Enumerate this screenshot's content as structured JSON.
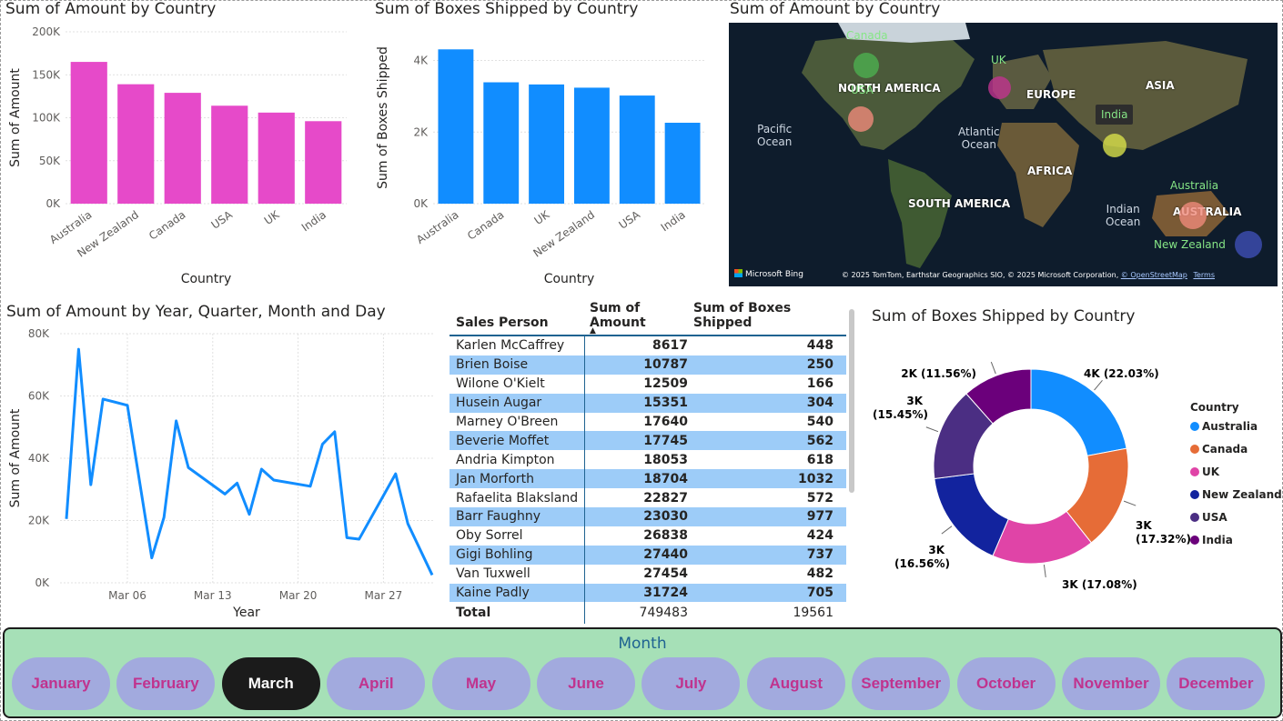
{
  "charts": {
    "amount_bar": {
      "title": "Sum of Amount by Country",
      "xlabel": "Country",
      "ylabel": "Sum of Amount",
      "color": "#e64ac9",
      "yticks": [
        "200K",
        "150K",
        "100K",
        "50K",
        "0K"
      ]
    },
    "boxes_bar": {
      "title": "Sum of Boxes Shipped by Country",
      "xlabel": "Country",
      "ylabel": "Sum of Boxes Shipped",
      "color": "#118dff",
      "yticks": [
        "4K",
        "2K",
        "0K"
      ]
    },
    "map": {
      "title": "Sum of Amount by Country",
      "continents": [
        "NORTH AMERICA",
        "EUROPE",
        "ASIA",
        "AFRICA",
        "SOUTH AMERICA",
        "AUSTRALIA"
      ],
      "oceans": [
        "Pacific\nOcean",
        "Atlantic\nOcean",
        "Indian\nOcean"
      ],
      "countries": [
        "Canada",
        "USA",
        "UK",
        "India",
        "Australia",
        "New Zealand"
      ],
      "logo": "Microsoft Bing",
      "credits": "© 2025 TomTom, Earthstar Geographics SIO, © 2025 Microsoft Corporation,",
      "osm": "© OpenStreetMap",
      "terms": "Terms"
    },
    "line": {
      "title": "Sum of Amount by Year, Quarter, Month and Day",
      "xlabel": "Year",
      "ylabel": "Sum of Amount",
      "color": "#118dff",
      "yticks": [
        "80K",
        "60K",
        "40K",
        "20K",
        "0K"
      ],
      "xticks": [
        "Mar 06",
        "Mar 13",
        "Mar 20",
        "Mar 27"
      ]
    },
    "donut": {
      "title": "Sum of Boxes Shipped by Country",
      "legend_title": "Country"
    }
  },
  "chart_data": [
    {
      "type": "bar",
      "title": "Sum of Amount by Country",
      "xlabel": "Country",
      "ylabel": "Sum of Amount",
      "categories": [
        "Australia",
        "New Zealand",
        "Canada",
        "USA",
        "UK",
        "India"
      ],
      "values": [
        165000,
        139000,
        129000,
        114000,
        106000,
        96000
      ],
      "ylim": [
        0,
        200000
      ]
    },
    {
      "type": "bar",
      "title": "Sum of Boxes Shipped by Country",
      "xlabel": "Country",
      "ylabel": "Sum of Boxes Shipped",
      "categories": [
        "Australia",
        "Canada",
        "UK",
        "New Zealand",
        "USA",
        "India"
      ],
      "values": [
        4310,
        3390,
        3330,
        3240,
        3020,
        2260
      ],
      "ylim": [
        0,
        4800
      ]
    },
    {
      "type": "line",
      "title": "Sum of Amount by Year, Quarter, Month and Day",
      "xlabel": "Year",
      "ylabel": "Sum of Amount",
      "x": [
        "2025-03-01",
        "2025-03-02",
        "2025-03-03",
        "2025-03-04",
        "2025-03-06",
        "2025-03-08",
        "2025-03-09",
        "2025-03-10",
        "2025-03-11",
        "2025-03-14",
        "2025-03-15",
        "2025-03-16",
        "2025-03-17",
        "2025-03-18",
        "2025-03-21",
        "2025-03-22",
        "2025-03-23",
        "2025-03-24",
        "2025-03-25",
        "2025-03-28",
        "2025-03-29",
        "2025-03-31"
      ],
      "values": [
        20500,
        75000,
        31500,
        59000,
        57000,
        8000,
        21000,
        52000,
        37000,
        28500,
        32000,
        22000,
        36500,
        33000,
        31000,
        44500,
        48500,
        14500,
        14000,
        35000,
        19000,
        2500
      ],
      "ylim": [
        0,
        80000
      ]
    },
    {
      "type": "pie",
      "title": "Sum of Boxes Shipped by Country",
      "categories": [
        "Australia",
        "Canada",
        "UK",
        "New Zealand",
        "USA",
        "India"
      ],
      "values": [
        22.03,
        17.32,
        17.08,
        16.56,
        15.45,
        11.56
      ],
      "labels": [
        "4K (22.03%)",
        "3K (17.32%)",
        "3K (17.08%)",
        "3K (16.56%)",
        "3K (15.45%)",
        "2K (11.56%)"
      ],
      "colors": [
        "#118dff",
        "#e66c37",
        "#e044a7",
        "#12239e",
        "#6b007b",
        "#6b007b"
      ]
    }
  ],
  "map_bubbles": [
    {
      "country": "Canada",
      "color": "#4caf50"
    },
    {
      "country": "USA",
      "color": "#ef8a7a"
    },
    {
      "country": "UK",
      "color": "#c0338e"
    },
    {
      "country": "India",
      "color": "#d8e04a"
    },
    {
      "country": "Australia",
      "color": "#ef8a7a"
    },
    {
      "country": "New Zealand",
      "color": "#3f4fb5"
    }
  ],
  "table": {
    "headers": [
      "Sales Person",
      "Sum of Amount",
      "Sum of Boxes Shipped"
    ],
    "rows": [
      [
        "Karlen McCaffrey",
        "8617",
        "448"
      ],
      [
        "Brien Boise",
        "10787",
        "250"
      ],
      [
        "Wilone O'Kielt",
        "12509",
        "166"
      ],
      [
        "Husein Augar",
        "15351",
        "304"
      ],
      [
        "Marney O'Breen",
        "17640",
        "540"
      ],
      [
        "Beverie Moffet",
        "17745",
        "562"
      ],
      [
        "Andria Kimpton",
        "18053",
        "618"
      ],
      [
        "Jan Morforth",
        "18704",
        "1032"
      ],
      [
        "Rafaelita Blaksland",
        "22827",
        "572"
      ],
      [
        "Barr Faughny",
        "23030",
        "977"
      ],
      [
        "Oby Sorrel",
        "26838",
        "424"
      ],
      [
        "Gigi Bohling",
        "27440",
        "737"
      ],
      [
        "Van Tuxwell",
        "27454",
        "482"
      ],
      [
        "Kaine Padly",
        "31724",
        "705"
      ]
    ],
    "total": [
      "Total",
      "749483",
      "19561"
    ]
  },
  "slicer": {
    "title": "Month",
    "months": [
      "January",
      "February",
      "March",
      "April",
      "May",
      "June",
      "July",
      "August",
      "September",
      "October",
      "November",
      "December"
    ],
    "selected": "March",
    "active_color": "#1b1b1b"
  }
}
